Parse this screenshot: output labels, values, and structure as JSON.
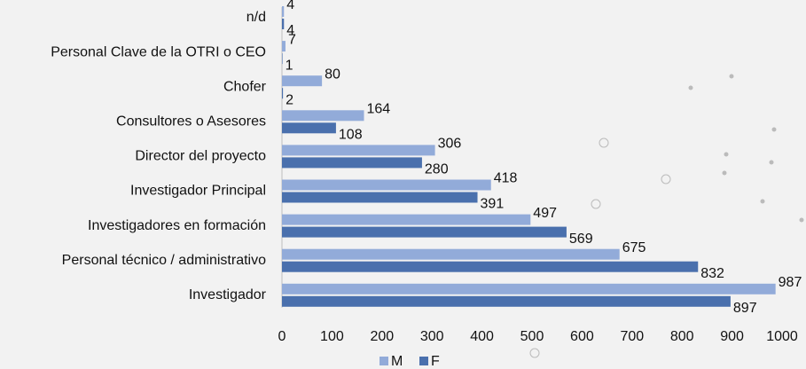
{
  "chart_data": {
    "type": "hbar",
    "categories": [
      "n/d",
      "Personal Clave de la OTRI o CEO",
      "Chofer",
      "Consultores o Asesores",
      "Director del proyecto",
      "Investigador Principal",
      "Investigadores en formación",
      "Personal técnico / administrativo",
      "Investigador"
    ],
    "series": [
      {
        "name": "M",
        "color": "#92abd9",
        "values": [
          4,
          7,
          80,
          164,
          306,
          418,
          497,
          675,
          987
        ]
      },
      {
        "name": "F",
        "color": "#4a70ad",
        "values": [
          4,
          1,
          2,
          108,
          280,
          391,
          569,
          832,
          897
        ]
      }
    ],
    "xlim": [
      0,
      1000
    ],
    "xticks": [
      0,
      100,
      200,
      300,
      400,
      500,
      600,
      700,
      800,
      900,
      1000
    ],
    "legend": "bottom"
  }
}
